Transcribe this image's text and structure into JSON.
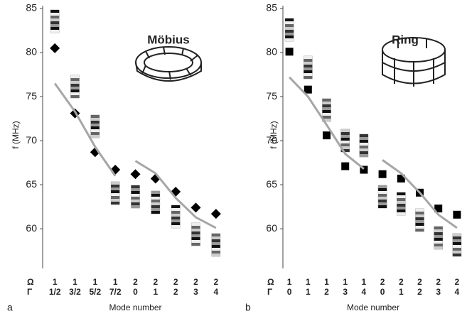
{
  "chart_data": [
    {
      "type": "line",
      "title": "Möbius",
      "panel_label": "a",
      "y_label": "f (MHz)",
      "x_label": "Mode number",
      "row_labels": [
        "Ω",
        "Γ"
      ],
      "categories": [
        "1",
        "1",
        "1",
        "1",
        "2",
        "2",
        "2",
        "2",
        "2"
      ],
      "gamma": [
        "1/2",
        "3/2",
        "5/2",
        "7/2",
        "0",
        "1",
        "2",
        "3",
        "4"
      ],
      "ylim": [
        55.5,
        85
      ],
      "yticks": [
        60,
        65,
        70,
        75,
        80,
        85
      ],
      "series": [
        {
          "color": "#000000",
          "marker": "diamond",
          "values": [
            80.5,
            73.1,
            68.7,
            66.7,
            66.2,
            65.7,
            64.2,
            62.4,
            61.7
          ]
        },
        {
          "color": "#a6a6a6",
          "marker": "none",
          "values": [
            76.5,
            73.3,
            69.3,
            66.0,
            null,
            null,
            null,
            null,
            null
          ]
        },
        {
          "color": "#a6a6a6",
          "marker": "none",
          "values": [
            null,
            null,
            null,
            null,
            67.7,
            66.3,
            63.5,
            61.3,
            60.1
          ]
        }
      ]
    },
    {
      "type": "line",
      "title": "Ring",
      "panel_label": "b",
      "y_label": "f (MHz)",
      "x_label": "Mode number",
      "row_labels": [
        "Ω",
        "Γ"
      ],
      "categories": [
        "1",
        "1",
        "1",
        "1",
        "1",
        "2",
        "2",
        "2",
        "2",
        "2"
      ],
      "gamma": [
        "0",
        "1",
        "2",
        "3",
        "4",
        "0",
        "1",
        "2",
        "3",
        "4"
      ],
      "ylim": [
        55.5,
        85
      ],
      "yticks": [
        60,
        65,
        70,
        75,
        80,
        85
      ],
      "series": [
        {
          "color": "#000000",
          "marker": "square",
          "values": [
            80.1,
            75.8,
            70.6,
            67.1,
            66.7,
            66.2,
            65.7,
            64.1,
            62.3,
            61.6
          ]
        },
        {
          "color": "#a6a6a6",
          "marker": "none",
          "values": [
            77.2,
            75.0,
            71.8,
            68.5,
            66.8,
            null,
            null,
            null,
            null,
            null
          ]
        },
        {
          "color": "#a6a6a6",
          "marker": "none",
          "values": [
            null,
            null,
            null,
            null,
            null,
            67.8,
            66.3,
            64.1,
            61.6,
            60.1
          ]
        }
      ]
    }
  ]
}
